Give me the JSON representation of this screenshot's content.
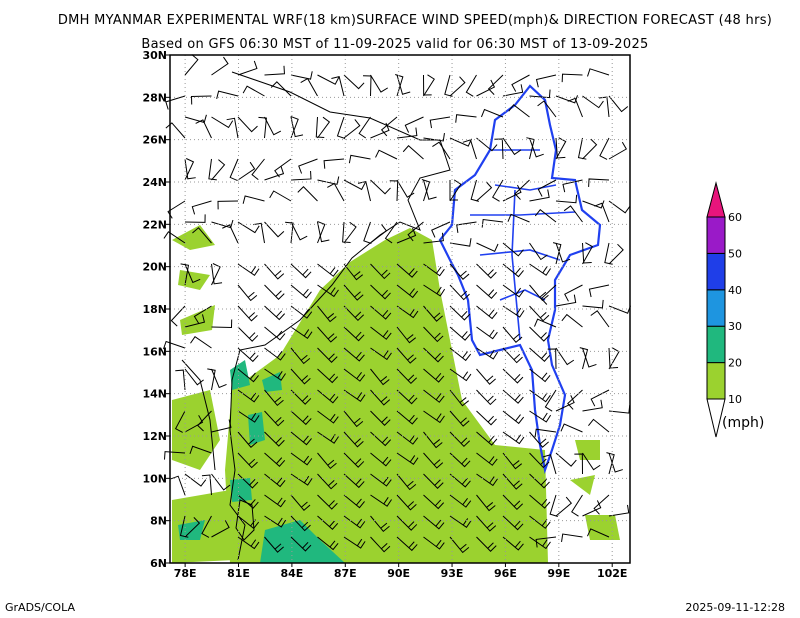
{
  "header": {
    "title": "DMH MYANMAR EXPERIMENTAL WRF(18 km)SURFACE WIND SPEED(mph)& DIRECTION FORECAST (48 hrs)",
    "subtitle": "Based on GFS 06:30 MST of 11-09-2025 valid for 06:30 MST of 13-09-2025"
  },
  "map": {
    "xlim": [
      77.15,
      103
    ],
    "ylim": [
      6,
      30
    ],
    "xticks": [
      {
        "value": 78,
        "label": "78E"
      },
      {
        "value": 81,
        "label": "81E"
      },
      {
        "value": 84,
        "label": "84E"
      },
      {
        "value": 87,
        "label": "87E"
      },
      {
        "value": 90,
        "label": "90E"
      },
      {
        "value": 93,
        "label": "93E"
      },
      {
        "value": 96,
        "label": "96E"
      },
      {
        "value": 99,
        "label": "99E"
      },
      {
        "value": 102,
        "label": "102E"
      }
    ],
    "yticks": [
      {
        "value": 6,
        "label": "6N"
      },
      {
        "value": 8,
        "label": "8N"
      },
      {
        "value": 10,
        "label": "10N"
      },
      {
        "value": 12,
        "label": "12N"
      },
      {
        "value": 14,
        "label": "14N"
      },
      {
        "value": 16,
        "label": "16N"
      },
      {
        "value": 18,
        "label": "18N"
      },
      {
        "value": 20,
        "label": "20N"
      },
      {
        "value": 22,
        "label": "22N"
      },
      {
        "value": 24,
        "label": "24N"
      },
      {
        "value": 26,
        "label": "26N"
      },
      {
        "value": 28,
        "label": "28N"
      },
      {
        "value": 30,
        "label": "30N"
      }
    ]
  },
  "colorbar": {
    "levels": [
      10,
      20,
      30,
      40,
      50,
      60
    ],
    "colors": [
      "#ffffff",
      "#9bd22f",
      "#20b87e",
      "#1e95e0",
      "#1f3ee8",
      "#9a1ac8",
      "#e8157c"
    ],
    "unit": "(mph)"
  },
  "footer": {
    "left": "GrADS/COLA",
    "right": "2025-09-11-12:28"
  }
}
